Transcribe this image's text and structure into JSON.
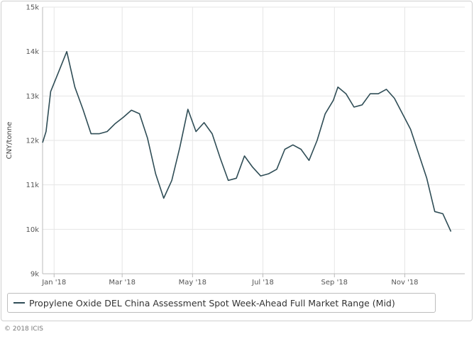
{
  "chart_data": {
    "type": "line",
    "title": "",
    "ylabel": "CNY/tonne",
    "xlabel": "",
    "ylim": [
      9000,
      15000
    ],
    "yticks": [
      9000,
      10000,
      11000,
      12000,
      13000,
      14000,
      15000
    ],
    "ytick_labels": [
      "9k",
      "10k",
      "11k",
      "12k",
      "13k",
      "14k",
      "15k"
    ],
    "xlim": [
      "2017-12-22",
      "2018-12-23"
    ],
    "xticks": [
      "2018-01-01",
      "2018-03-01",
      "2018-05-01",
      "2018-07-01",
      "2018-09-01",
      "2018-11-01"
    ],
    "xtick_labels": [
      "Jan '18",
      "Mar '18",
      "May '18",
      "Jul '18",
      "Sep '18",
      "Nov '18"
    ],
    "grid": true,
    "legend_position": "bottom",
    "series": [
      {
        "name": "Propylene Oxide DEL China Assessment Spot Week-Ahead Full Market Range (Mid)",
        "color": "#2f4d56",
        "points": [
          [
            "2017-12-22",
            11950
          ],
          [
            "2017-12-25",
            12200
          ],
          [
            "2017-12-29",
            13100
          ],
          [
            "2018-01-05",
            13550
          ],
          [
            "2018-01-12",
            14000
          ],
          [
            "2018-01-19",
            13200
          ],
          [
            "2018-01-26",
            12700
          ],
          [
            "2018-02-02",
            12150
          ],
          [
            "2018-02-09",
            12150
          ],
          [
            "2018-02-16",
            12200
          ],
          [
            "2018-02-23",
            12380
          ],
          [
            "2018-03-02",
            12520
          ],
          [
            "2018-03-09",
            12680
          ],
          [
            "2018-03-16",
            12600
          ],
          [
            "2018-03-23",
            12050
          ],
          [
            "2018-03-30",
            11250
          ],
          [
            "2018-04-06",
            10700
          ],
          [
            "2018-04-13",
            11100
          ],
          [
            "2018-04-20",
            11850
          ],
          [
            "2018-04-27",
            12700
          ],
          [
            "2018-05-04",
            12200
          ],
          [
            "2018-05-11",
            12400
          ],
          [
            "2018-05-18",
            12150
          ],
          [
            "2018-05-25",
            11600
          ],
          [
            "2018-06-01",
            11100
          ],
          [
            "2018-06-08",
            11150
          ],
          [
            "2018-06-15",
            11650
          ],
          [
            "2018-06-22",
            11400
          ],
          [
            "2018-06-29",
            11200
          ],
          [
            "2018-07-06",
            11250
          ],
          [
            "2018-07-13",
            11350
          ],
          [
            "2018-07-20",
            11800
          ],
          [
            "2018-07-27",
            11900
          ],
          [
            "2018-08-03",
            11800
          ],
          [
            "2018-08-10",
            11550
          ],
          [
            "2018-08-17",
            12000
          ],
          [
            "2018-08-24",
            12600
          ],
          [
            "2018-08-31",
            12900
          ],
          [
            "2018-09-04",
            13200
          ],
          [
            "2018-09-11",
            13050
          ],
          [
            "2018-09-18",
            12750
          ],
          [
            "2018-09-25",
            12800
          ],
          [
            "2018-10-02",
            13050
          ],
          [
            "2018-10-09",
            13050
          ],
          [
            "2018-10-16",
            13150
          ],
          [
            "2018-10-23",
            12950
          ],
          [
            "2018-10-30",
            12600
          ],
          [
            "2018-11-06",
            12250
          ],
          [
            "2018-11-13",
            11700
          ],
          [
            "2018-11-20",
            11150
          ],
          [
            "2018-11-27",
            10400
          ],
          [
            "2018-12-04",
            10350
          ],
          [
            "2018-12-11",
            9950
          ]
        ]
      }
    ]
  },
  "footer": {
    "copyright": "© 2018 ICIS"
  }
}
